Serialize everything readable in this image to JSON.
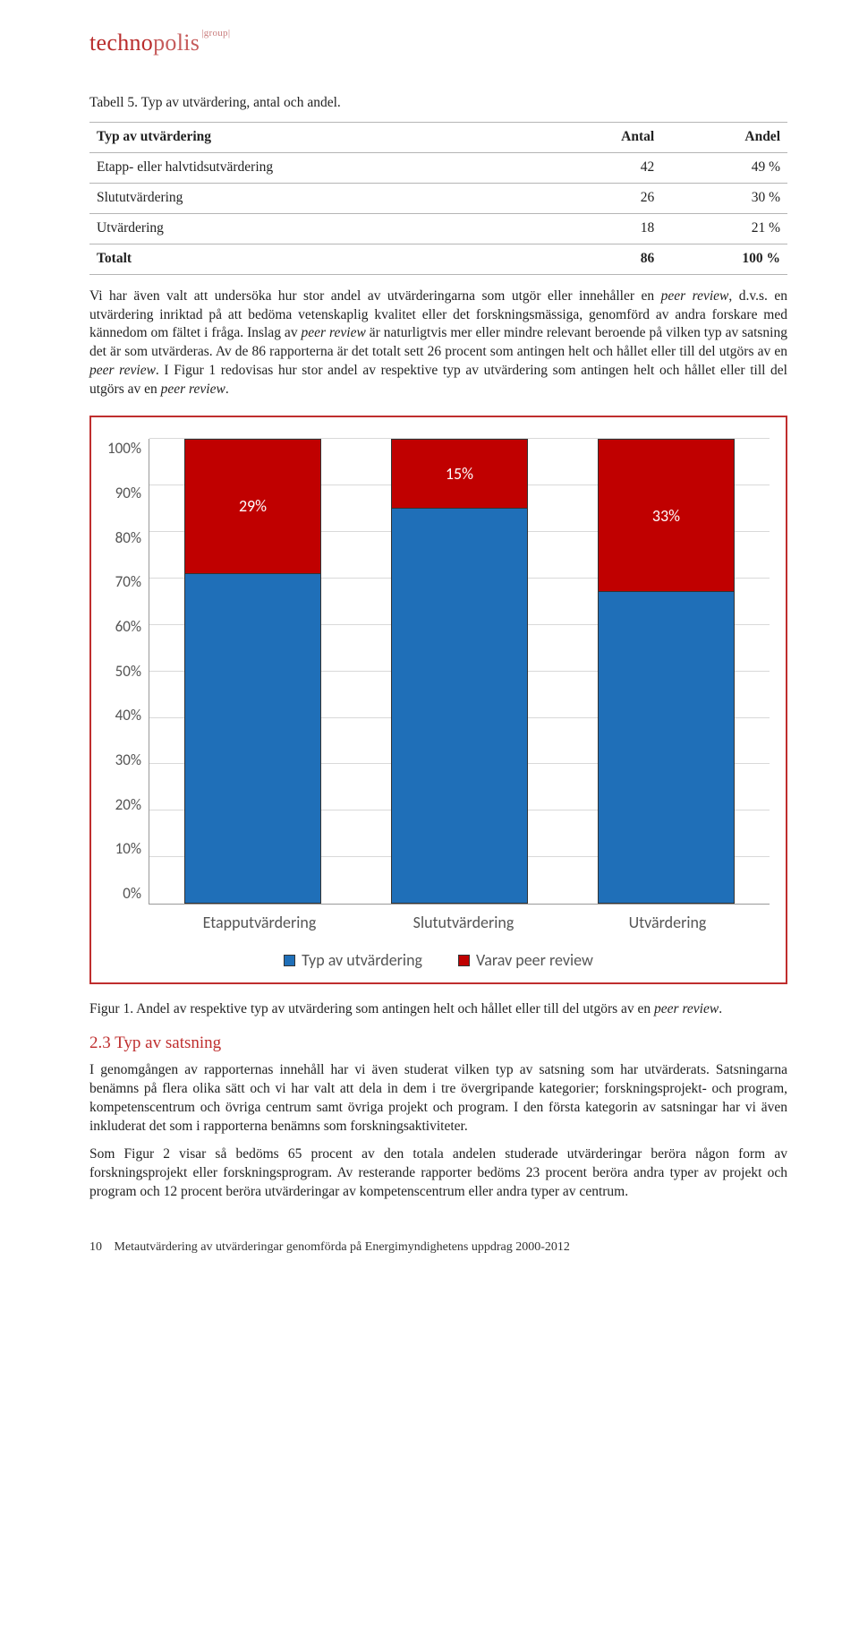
{
  "logo": {
    "main": "techno",
    "light": "polis",
    "group": "|group|"
  },
  "table_caption": "Tabell 5. Typ av utvärdering, antal och andel.",
  "table": {
    "columns": [
      "Typ av utvärdering",
      "Antal",
      "Andel"
    ],
    "rows": [
      [
        "Etapp- eller halvtidsutvärdering",
        "42",
        "49 %"
      ],
      [
        "Slututvärdering",
        "26",
        "30 %"
      ],
      [
        "Utvärdering",
        "18",
        "21 %"
      ]
    ],
    "total": [
      "Totalt",
      "86",
      "100 %"
    ]
  },
  "para1_a": "Vi har även valt att undersöka hur stor andel av utvärderingarna som utgör eller innehåller en ",
  "para1_pr1": "peer review",
  "para1_b": ", d.v.s. en utvärdering inriktad på att bedöma vetenskaplig kvalitet eller det forskningsmässiga, genomförd av andra forskare med kännedom om fältet i fråga. Inslag av ",
  "para1_pr2": "peer review",
  "para1_c": " är naturligtvis mer eller mindre relevant beroende på vilken typ av satsning det är som utvärderas. Av de 86 rapporterna är det totalt sett 26 procent som antingen helt och hållet eller till del utgörs av en ",
  "para1_pr3": "peer review",
  "para1_d": ". I Figur 1 redovisas hur stor andel av respektive typ av utvärdering som antingen helt och hållet eller till del utgörs av en ",
  "para1_pr4": "peer review",
  "para1_e": ".",
  "chart": {
    "type": "stacked-bar",
    "categories": [
      "Etapputvärdering",
      "Slututvärdering",
      "Utvärdering"
    ],
    "series": [
      {
        "name": "Typ av utvärdering",
        "color": "#1f6fb8",
        "values": [
          71,
          85,
          67
        ]
      },
      {
        "name": "Varav peer review",
        "color": "#c00000",
        "values": [
          29,
          15,
          33
        ],
        "labels": [
          "29%",
          "15%",
          "33%"
        ]
      }
    ],
    "ylim": [
      0,
      100
    ],
    "ytick_step": 10,
    "yticks": [
      "100%",
      "90%",
      "80%",
      "70%",
      "60%",
      "50%",
      "40%",
      "30%",
      "20%",
      "10%",
      "0%"
    ],
    "grid_color": "#d9d9d9",
    "axis_font": "Calibri",
    "border_color": "#bf2e2e",
    "background": "#ffffff",
    "label_color": "#ffffff"
  },
  "fig_caption_a": "Figur 1. Andel av respektive typ av utvärdering som antingen helt och hållet eller till del utgörs av en ",
  "fig_caption_pr": "peer review",
  "fig_caption_b": ".",
  "section_heading": "2.3 Typ av satsning",
  "para2": "I genomgången av rapporternas innehåll har vi även studerat vilken typ av satsning som har utvärderats. Satsningarna benämns på flera olika sätt och vi har valt att dela in dem i tre övergripande kategorier; forskningsprojekt- och program, kompetenscentrum och övriga centrum samt övriga projekt och program. I den första kategorin av satsningar har vi även inkluderat det som i rapporterna benämns som forskningsaktiviteter.",
  "para3": "Som Figur 2 visar så bedöms 65 procent av den totala andelen studerade utvärderingar beröra någon form av forskningsprojekt eller forskningsprogram. Av resterande rapporter bedöms 23 procent beröra andra typer av projekt och program och 12 procent beröra utvärderingar av kompetenscentrum eller andra typer av centrum.",
  "footer_page": "10",
  "footer_text": "Metautvärdering av utvärderingar genomförda på Energimyndighetens uppdrag 2000-2012"
}
